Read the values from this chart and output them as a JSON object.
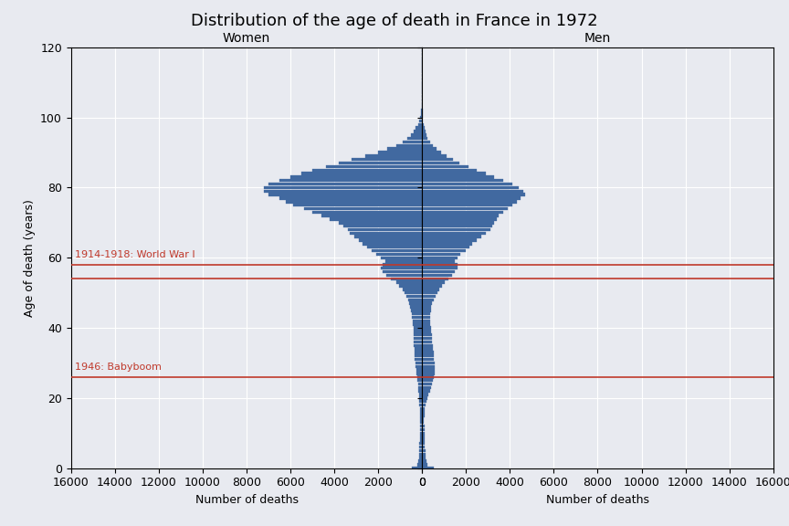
{
  "title": "Distribution of the age of death in France in 1972",
  "ylabel": "Age of death (years)",
  "xlabel": "Number of deaths",
  "women_label": "Women",
  "men_label": "Men",
  "ylim": [
    0,
    120
  ],
  "xlim": 16000,
  "yticks": [
    0,
    20,
    40,
    60,
    80,
    100,
    120
  ],
  "xticks_women": [
    16000,
    14000,
    12000,
    10000,
    8000,
    6000,
    4000,
    2000,
    0
  ],
  "xticks_men": [
    0,
    2000,
    4000,
    6000,
    8000,
    10000,
    12000,
    14000,
    16000
  ],
  "ww1_age": 58,
  "ww1_age2": 54,
  "babyboom_age": 26,
  "ww1_label": "1914-1918: World War I",
  "babyboom_label": "1946: Babyboom",
  "bar_color": "#4169a0",
  "line_color": "#c0392b",
  "bg_color": "#e8eaf0",
  "grid_color": "white",
  "title_fontsize": 13,
  "label_fontsize": 9,
  "annotation_fontsize": 8,
  "ages": [
    0,
    1,
    2,
    3,
    4,
    5,
    6,
    7,
    8,
    9,
    10,
    11,
    12,
    13,
    14,
    15,
    16,
    17,
    18,
    19,
    20,
    21,
    22,
    23,
    24,
    25,
    26,
    27,
    28,
    29,
    30,
    31,
    32,
    33,
    34,
    35,
    36,
    37,
    38,
    39,
    40,
    41,
    42,
    43,
    44,
    45,
    46,
    47,
    48,
    49,
    50,
    51,
    52,
    53,
    54,
    55,
    56,
    57,
    58,
    59,
    60,
    61,
    62,
    63,
    64,
    65,
    66,
    67,
    68,
    69,
    70,
    71,
    72,
    73,
    74,
    75,
    76,
    77,
    78,
    79,
    80,
    81,
    82,
    83,
    84,
    85,
    86,
    87,
    88,
    89,
    90,
    91,
    92,
    93,
    94,
    95,
    96,
    97,
    98,
    99,
    100,
    101,
    102,
    103,
    104,
    105,
    106,
    107,
    108,
    109,
    110,
    111,
    112,
    113,
    114,
    115,
    116,
    117,
    118,
    119
  ],
  "women": [
    450,
    220,
    170,
    150,
    140,
    130,
    125,
    118,
    112,
    108,
    104,
    100,
    95,
    90,
    88,
    92,
    98,
    108,
    118,
    128,
    138,
    148,
    158,
    170,
    185,
    205,
    225,
    245,
    265,
    285,
    305,
    325,
    335,
    345,
    355,
    365,
    368,
    368,
    375,
    385,
    395,
    415,
    435,
    455,
    485,
    525,
    555,
    595,
    645,
    715,
    795,
    895,
    1045,
    1195,
    1445,
    1645,
    1795,
    1895,
    1795,
    1695,
    1895,
    2095,
    2295,
    2495,
    2695,
    2895,
    3095,
    3295,
    3395,
    3595,
    3795,
    4195,
    4595,
    4995,
    5395,
    5895,
    6195,
    6495,
    6995,
    7195,
    7195,
    6995,
    6495,
    5995,
    5495,
    4995,
    4395,
    3795,
    3195,
    2595,
    1995,
    1595,
    1195,
    895,
    695,
    495,
    395,
    295,
    195,
    145,
    95,
    65,
    45,
    28,
    18,
    9,
    5,
    3,
    2,
    1,
    1,
    1,
    0,
    0,
    0,
    0,
    0,
    0,
    0,
    0,
    0
  ],
  "men": [
    520,
    250,
    185,
    162,
    152,
    142,
    132,
    122,
    118,
    113,
    108,
    103,
    98,
    93,
    93,
    98,
    108,
    128,
    158,
    198,
    248,
    298,
    348,
    398,
    448,
    498,
    548,
    578,
    578,
    568,
    558,
    548,
    538,
    528,
    508,
    488,
    468,
    458,
    438,
    418,
    398,
    378,
    358,
    358,
    368,
    388,
    418,
    458,
    518,
    598,
    698,
    798,
    898,
    1048,
    1198,
    1348,
    1498,
    1598,
    1598,
    1498,
    1598,
    1748,
    1998,
    2148,
    2298,
    2498,
    2698,
    2898,
    3098,
    3198,
    3298,
    3398,
    3498,
    3698,
    3898,
    4098,
    4298,
    4498,
    4698,
    4598,
    4398,
    4098,
    3698,
    3298,
    2898,
    2498,
    2098,
    1698,
    1398,
    1098,
    848,
    648,
    478,
    358,
    258,
    188,
    138,
    98,
    68,
    48,
    33,
    23,
    13,
    8,
    5,
    3,
    2,
    1,
    1,
    0,
    0,
    0,
    0,
    0,
    0,
    0,
    0,
    0
  ]
}
